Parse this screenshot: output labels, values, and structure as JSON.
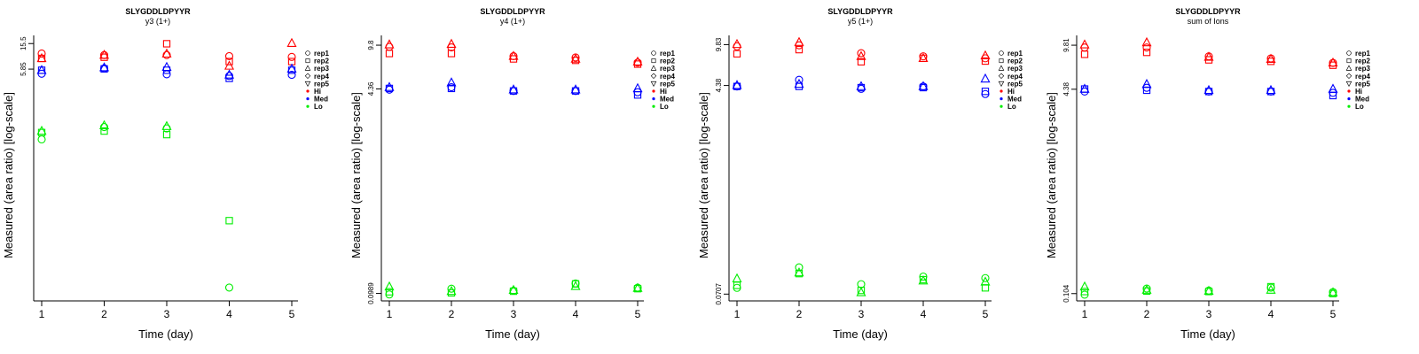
{
  "colors": {
    "Hi": "#ff0000",
    "Med": "#0000ff",
    "Lo": "#00ee00"
  },
  "legend": {
    "entries": [
      {
        "label": "rep1",
        "shape": "circle"
      },
      {
        "label": "rep2",
        "shape": "square"
      },
      {
        "label": "rep3",
        "shape": "triangle"
      },
      {
        "label": "rep4",
        "shape": "diamond"
      },
      {
        "label": "rep5",
        "shape": "triangle-down"
      },
      {
        "label": "Hi",
        "dot": "Hi"
      },
      {
        "label": "Med",
        "dot": "Med"
      },
      {
        "label": "Lo",
        "dot": "Lo"
      }
    ]
  },
  "chart_data": [
    {
      "type": "scatter",
      "title": "SLYGDDLDPYYR",
      "subtitle": "y3 (1+)",
      "xlabel": "Time (day)",
      "ylabel": "Measured (area ratio) [log-scale]",
      "x_ticks": [
        1,
        2,
        3,
        4,
        5
      ],
      "y_ticks": [
        {
          "value": 5.85,
          "label": "5.85"
        },
        {
          "value": 15.5,
          "label": "15.5"
        }
      ],
      "ylim": [
        0.0009,
        18.5
      ],
      "log_y": true,
      "grid": false,
      "legend_position": "right",
      "series": [
        {
          "group": "Hi",
          "rep": "rep1",
          "points": [
            [
              1,
              10.6
            ],
            [
              2,
              10.0
            ],
            [
              3,
              10.0
            ],
            [
              4,
              9.6
            ],
            [
              5,
              9.3
            ]
          ]
        },
        {
          "group": "Hi",
          "rep": "rep2",
          "points": [
            [
              1,
              8.8
            ],
            [
              2,
              9.2
            ],
            [
              3,
              15.4
            ],
            [
              4,
              7.8
            ],
            [
              5,
              7.8
            ]
          ]
        },
        {
          "group": "Hi",
          "rep": "rep3",
          "points": [
            [
              1,
              8.8
            ],
            [
              2,
              10.0
            ],
            [
              3,
              10.5
            ],
            [
              4,
              6.6
            ],
            [
              5,
              15.7
            ]
          ]
        },
        {
          "group": "Med",
          "rep": "rep1",
          "points": [
            [
              1,
              4.9
            ],
            [
              2,
              6.0
            ],
            [
              3,
              4.8
            ],
            [
              4,
              4.5
            ],
            [
              5,
              4.7
            ]
          ]
        },
        {
          "group": "Med",
          "rep": "rep2",
          "points": [
            [
              1,
              5.6
            ],
            [
              2,
              5.9
            ],
            [
              3,
              5.6
            ],
            [
              4,
              4.1
            ],
            [
              5,
              5.6
            ]
          ]
        },
        {
          "group": "Med",
          "rep": "rep3",
          "points": [
            [
              1,
              5.6
            ],
            [
              2,
              6.2
            ],
            [
              3,
              6.3
            ],
            [
              4,
              4.7
            ],
            [
              5,
              5.9
            ]
          ]
        },
        {
          "group": "Lo",
          "rep": "rep1",
          "points": [
            [
              1,
              0.4
            ],
            [
              2,
              0.64
            ],
            [
              3,
              0.61
            ],
            [
              4,
              0.0014
            ]
          ]
        },
        {
          "group": "Lo",
          "rep": "rep2",
          "points": [
            [
              1,
              0.52
            ],
            [
              2,
              0.55
            ],
            [
              3,
              0.48
            ],
            [
              4,
              0.018
            ]
          ]
        },
        {
          "group": "Lo",
          "rep": "rep3",
          "points": [
            [
              1,
              0.55
            ],
            [
              2,
              0.68
            ],
            [
              3,
              0.66
            ]
          ]
        }
      ]
    },
    {
      "type": "scatter",
      "title": "SLYGDDLDPYYR",
      "subtitle": "y4 (1+)",
      "xlabel": "Time (day)",
      "ylabel": "Measured (area ratio) [log-scale]",
      "x_ticks": [
        1,
        2,
        3,
        4,
        5
      ],
      "y_ticks": [
        {
          "value": 0.0989,
          "label": "0.0989"
        },
        {
          "value": 4.36,
          "label": "4.36"
        },
        {
          "value": 9.8,
          "label": "9.8"
        }
      ],
      "ylim": [
        0.089,
        11.0
      ],
      "log_y": true,
      "grid": false,
      "legend_position": "right",
      "series": [
        {
          "group": "Hi",
          "rep": "rep1",
          "points": [
            [
              1,
              9.5
            ],
            [
              2,
              9.4
            ],
            [
              3,
              8.0
            ],
            [
              4,
              7.8
            ],
            [
              5,
              7.1
            ]
          ]
        },
        {
          "group": "Hi",
          "rep": "rep2",
          "points": [
            [
              1,
              8.4
            ],
            [
              2,
              8.4
            ],
            [
              3,
              7.6
            ],
            [
              4,
              7.4
            ],
            [
              5,
              6.9
            ]
          ]
        },
        {
          "group": "Hi",
          "rep": "rep3",
          "points": [
            [
              1,
              9.9
            ],
            [
              2,
              10.0
            ],
            [
              3,
              8.0
            ],
            [
              4,
              7.6
            ],
            [
              5,
              7.2
            ]
          ]
        },
        {
          "group": "Med",
          "rep": "rep1",
          "points": [
            [
              1,
              4.3
            ],
            [
              2,
              4.5
            ],
            [
              3,
              4.2
            ],
            [
              4,
              4.2
            ],
            [
              5,
              4.1
            ]
          ]
        },
        {
          "group": "Med",
          "rep": "rep2",
          "points": [
            [
              1,
              4.4
            ],
            [
              2,
              4.4
            ],
            [
              3,
              4.2
            ],
            [
              4,
              4.2
            ],
            [
              5,
              3.9
            ]
          ]
        },
        {
          "group": "Med",
          "rep": "rep3",
          "points": [
            [
              1,
              4.5
            ],
            [
              2,
              4.9
            ],
            [
              3,
              4.3
            ],
            [
              4,
              4.3
            ],
            [
              5,
              4.4
            ]
          ]
        },
        {
          "group": "Lo",
          "rep": "rep1",
          "points": [
            [
              1,
              0.097
            ],
            [
              2,
              0.108
            ],
            [
              3,
              0.104
            ],
            [
              4,
              0.119
            ],
            [
              5,
              0.11
            ]
          ]
        },
        {
          "group": "Lo",
          "rep": "rep2",
          "points": [
            [
              1,
              0.102
            ],
            [
              2,
              0.1
            ],
            [
              3,
              0.103
            ],
            [
              4,
              0.118
            ],
            [
              5,
              0.108
            ]
          ]
        },
        {
          "group": "Lo",
          "rep": "rep3",
          "points": [
            [
              1,
              0.112
            ],
            [
              2,
              0.103
            ],
            [
              3,
              0.105
            ],
            [
              4,
              0.113
            ],
            [
              5,
              0.109
            ]
          ]
        }
      ]
    },
    {
      "type": "scatter",
      "title": "SLYGDDLDPYYR",
      "subtitle": "y5 (1+)",
      "xlabel": "Time (day)",
      "ylabel": "Measured (area ratio) [log-scale]",
      "x_ticks": [
        1,
        2,
        3,
        4,
        5
      ],
      "y_ticks": [
        {
          "value": 0.0707,
          "label": "0.0707"
        },
        {
          "value": 4.38,
          "label": "4.38"
        },
        {
          "value": 9.83,
          "label": "9.83"
        }
      ],
      "ylim": [
        0.064,
        11.0
      ],
      "log_y": true,
      "grid": false,
      "legend_position": "right",
      "series": [
        {
          "group": "Hi",
          "rep": "rep1",
          "points": [
            [
              1,
              9.5
            ],
            [
              2,
              9.7
            ],
            [
              3,
              8.3
            ],
            [
              4,
              7.8
            ],
            [
              5,
              7.5
            ]
          ]
        },
        {
          "group": "Hi",
          "rep": "rep2",
          "points": [
            [
              1,
              8.2
            ],
            [
              2,
              8.9
            ],
            [
              3,
              7.0
            ],
            [
              4,
              7.5
            ],
            [
              5,
              7.1
            ]
          ]
        },
        {
          "group": "Hi",
          "rep": "rep3",
          "points": [
            [
              1,
              9.9
            ],
            [
              2,
              10.3
            ],
            [
              3,
              7.8
            ],
            [
              4,
              7.5
            ],
            [
              5,
              7.9
            ]
          ]
        },
        {
          "group": "Med",
          "rep": "rep1",
          "points": [
            [
              1,
              4.3
            ],
            [
              2,
              4.9
            ],
            [
              3,
              4.1
            ],
            [
              4,
              4.3
            ],
            [
              5,
              3.7
            ]
          ]
        },
        {
          "group": "Med",
          "rep": "rep2",
          "points": [
            [
              1,
              4.3
            ],
            [
              2,
              4.3
            ],
            [
              3,
              4.2
            ],
            [
              4,
              4.2
            ],
            [
              5,
              3.9
            ]
          ]
        },
        {
          "group": "Med",
          "rep": "rep3",
          "points": [
            [
              1,
              4.4
            ],
            [
              2,
              4.5
            ],
            [
              3,
              4.3
            ],
            [
              4,
              4.3
            ],
            [
              5,
              5.0
            ]
          ]
        },
        {
          "group": "Lo",
          "rep": "rep1",
          "points": [
            [
              1,
              0.08
            ],
            [
              2,
              0.12
            ],
            [
              3,
              0.086
            ],
            [
              4,
              0.1
            ],
            [
              5,
              0.097
            ]
          ]
        },
        {
          "group": "Lo",
          "rep": "rep2",
          "points": [
            [
              1,
              0.084
            ],
            [
              2,
              0.106
            ],
            [
              3,
              0.076
            ],
            [
              4,
              0.094
            ],
            [
              5,
              0.08
            ]
          ]
        },
        {
          "group": "Lo",
          "rep": "rep3",
          "points": [
            [
              1,
              0.096
            ],
            [
              2,
              0.108
            ],
            [
              3,
              0.073
            ],
            [
              4,
              0.092
            ],
            [
              5,
              0.09
            ]
          ]
        }
      ]
    },
    {
      "type": "scatter",
      "title": "SLYGDDLDPYYR",
      "subtitle": "sum of Ions",
      "xlabel": "Time (day)",
      "ylabel": "Measured (area ratio) [log-scale]",
      "x_ticks": [
        1,
        2,
        3,
        4,
        5
      ],
      "y_ticks": [
        {
          "value": 0.104,
          "label": "0.104"
        },
        {
          "value": 4.38,
          "label": "4.38"
        },
        {
          "value": 9.81,
          "label": "9.81"
        }
      ],
      "ylim": [
        0.094,
        11.0
      ],
      "log_y": true,
      "grid": false,
      "legend_position": "right",
      "series": [
        {
          "group": "Hi",
          "rep": "rep1",
          "points": [
            [
              1,
              9.4
            ],
            [
              2,
              9.4
            ],
            [
              3,
              8.0
            ],
            [
              4,
              7.7
            ],
            [
              5,
              7.1
            ]
          ]
        },
        {
          "group": "Hi",
          "rep": "rep2",
          "points": [
            [
              1,
              8.3
            ],
            [
              2,
              8.6
            ],
            [
              3,
              7.5
            ],
            [
              4,
              7.3
            ],
            [
              5,
              6.8
            ]
          ]
        },
        {
          "group": "Hi",
          "rep": "rep3",
          "points": [
            [
              1,
              9.9
            ],
            [
              2,
              10.3
            ],
            [
              3,
              7.9
            ],
            [
              4,
              7.6
            ],
            [
              5,
              7.1
            ]
          ]
        },
        {
          "group": "Med",
          "rep": "rep1",
          "points": [
            [
              1,
              4.2
            ],
            [
              2,
              4.5
            ],
            [
              3,
              4.2
            ],
            [
              4,
              4.2
            ],
            [
              5,
              4.1
            ]
          ]
        },
        {
          "group": "Med",
          "rep": "rep2",
          "points": [
            [
              1,
              4.4
            ],
            [
              2,
              4.3
            ],
            [
              3,
              4.2
            ],
            [
              4,
              4.2
            ],
            [
              5,
              3.9
            ]
          ]
        },
        {
          "group": "Med",
          "rep": "rep3",
          "points": [
            [
              1,
              4.4
            ],
            [
              2,
              4.8
            ],
            [
              3,
              4.3
            ],
            [
              4,
              4.3
            ],
            [
              5,
              4.4
            ]
          ]
        },
        {
          "group": "Lo",
          "rep": "rep1",
          "points": [
            [
              1,
              0.102
            ],
            [
              2,
              0.114
            ],
            [
              3,
              0.11
            ],
            [
              4,
              0.116
            ],
            [
              5,
              0.107
            ]
          ]
        },
        {
          "group": "Lo",
          "rep": "rep2",
          "points": [
            [
              1,
              0.108
            ],
            [
              2,
              0.109
            ],
            [
              3,
              0.108
            ],
            [
              4,
              0.118
            ],
            [
              5,
              0.104
            ]
          ]
        },
        {
          "group": "Lo",
          "rep": "rep3",
          "points": [
            [
              1,
              0.118
            ],
            [
              2,
              0.111
            ],
            [
              3,
              0.109
            ],
            [
              4,
              0.111
            ],
            [
              5,
              0.106
            ]
          ]
        }
      ]
    }
  ]
}
